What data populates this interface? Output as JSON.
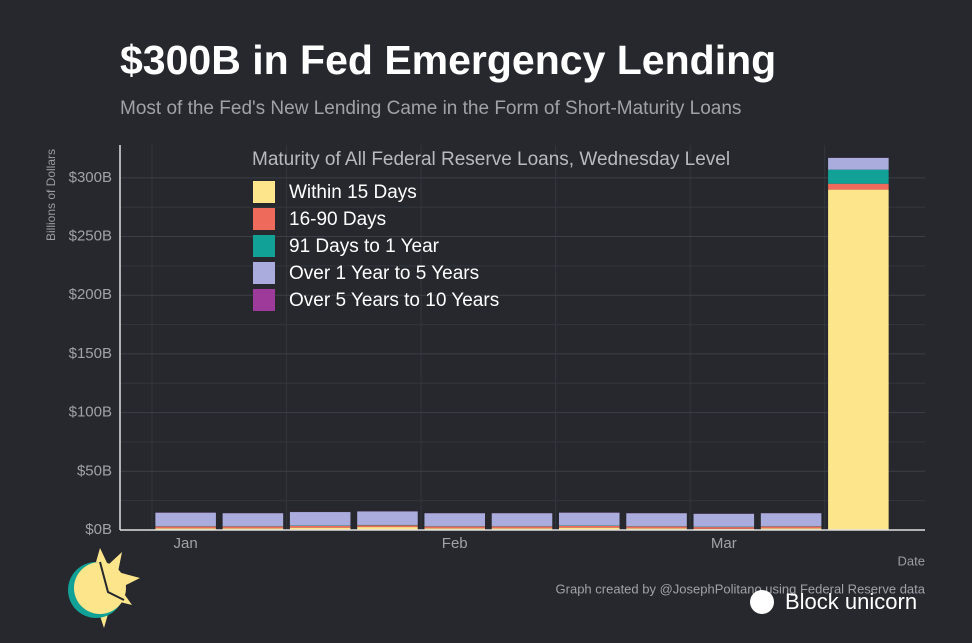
{
  "chart_data": {
    "type": "stacked-bar",
    "title": "$300B in Fed Emergency Lending",
    "subtitle": "Most of the Fed's New Lending Came in the Form of Short-Maturity Loans",
    "y_label": "Billions of Dollars",
    "x_label": "Date",
    "legend_title": "Maturity of All Federal Reserve Loans, Wednesday Level",
    "caption": "Graph created by @JosephPolitano using Federal Reserve data",
    "watermark": "Block unicorn",
    "categories": [
      "Jan",
      null,
      null,
      null,
      "Feb",
      null,
      null,
      null,
      "Mar",
      null,
      null
    ],
    "series": [
      {
        "name": "Within 15 Days",
        "color": "#fde58c",
        "values": [
          1.5,
          1.5,
          2,
          2.5,
          1.5,
          1.5,
          2,
          1.5,
          1,
          1.5,
          290
        ]
      },
      {
        "name": "16-90 Days",
        "color": "#ee6a5b",
        "values": [
          1.5,
          1.5,
          1.5,
          1.5,
          1.5,
          1.5,
          1.5,
          1.5,
          1.5,
          1.5,
          5
        ]
      },
      {
        "name": "91 Days to 1 Year",
        "color": "#12a196",
        "values": [
          0.3,
          0.3,
          0.3,
          0.3,
          0.3,
          0.3,
          0.3,
          0.3,
          0.3,
          0.3,
          12
        ]
      },
      {
        "name": "Over 1 Year to 5 Years",
        "color": "#a9acdc",
        "values": [
          11.5,
          11,
          11.5,
          11.5,
          11,
          11,
          11,
          11,
          11,
          11,
          10
        ]
      },
      {
        "name": "Over 5 Years to 10 Years",
        "color": "#9e3a9a",
        "values": [
          0.1,
          0.1,
          0.1,
          0.1,
          0.1,
          0.1,
          0.1,
          0.1,
          0.1,
          0.1,
          0.1
        ]
      }
    ],
    "ylim": [
      0,
      328
    ],
    "yticks": [
      {
        "value": 0,
        "label": "$0B"
      },
      {
        "value": 50,
        "label": "$50B"
      },
      {
        "value": 100,
        "label": "$100B"
      },
      {
        "value": 150,
        "label": "$150B"
      },
      {
        "value": 200,
        "label": "$200B"
      },
      {
        "value": 250,
        "label": "$250B"
      },
      {
        "value": 300,
        "label": "$300B"
      }
    ],
    "grid": true
  }
}
